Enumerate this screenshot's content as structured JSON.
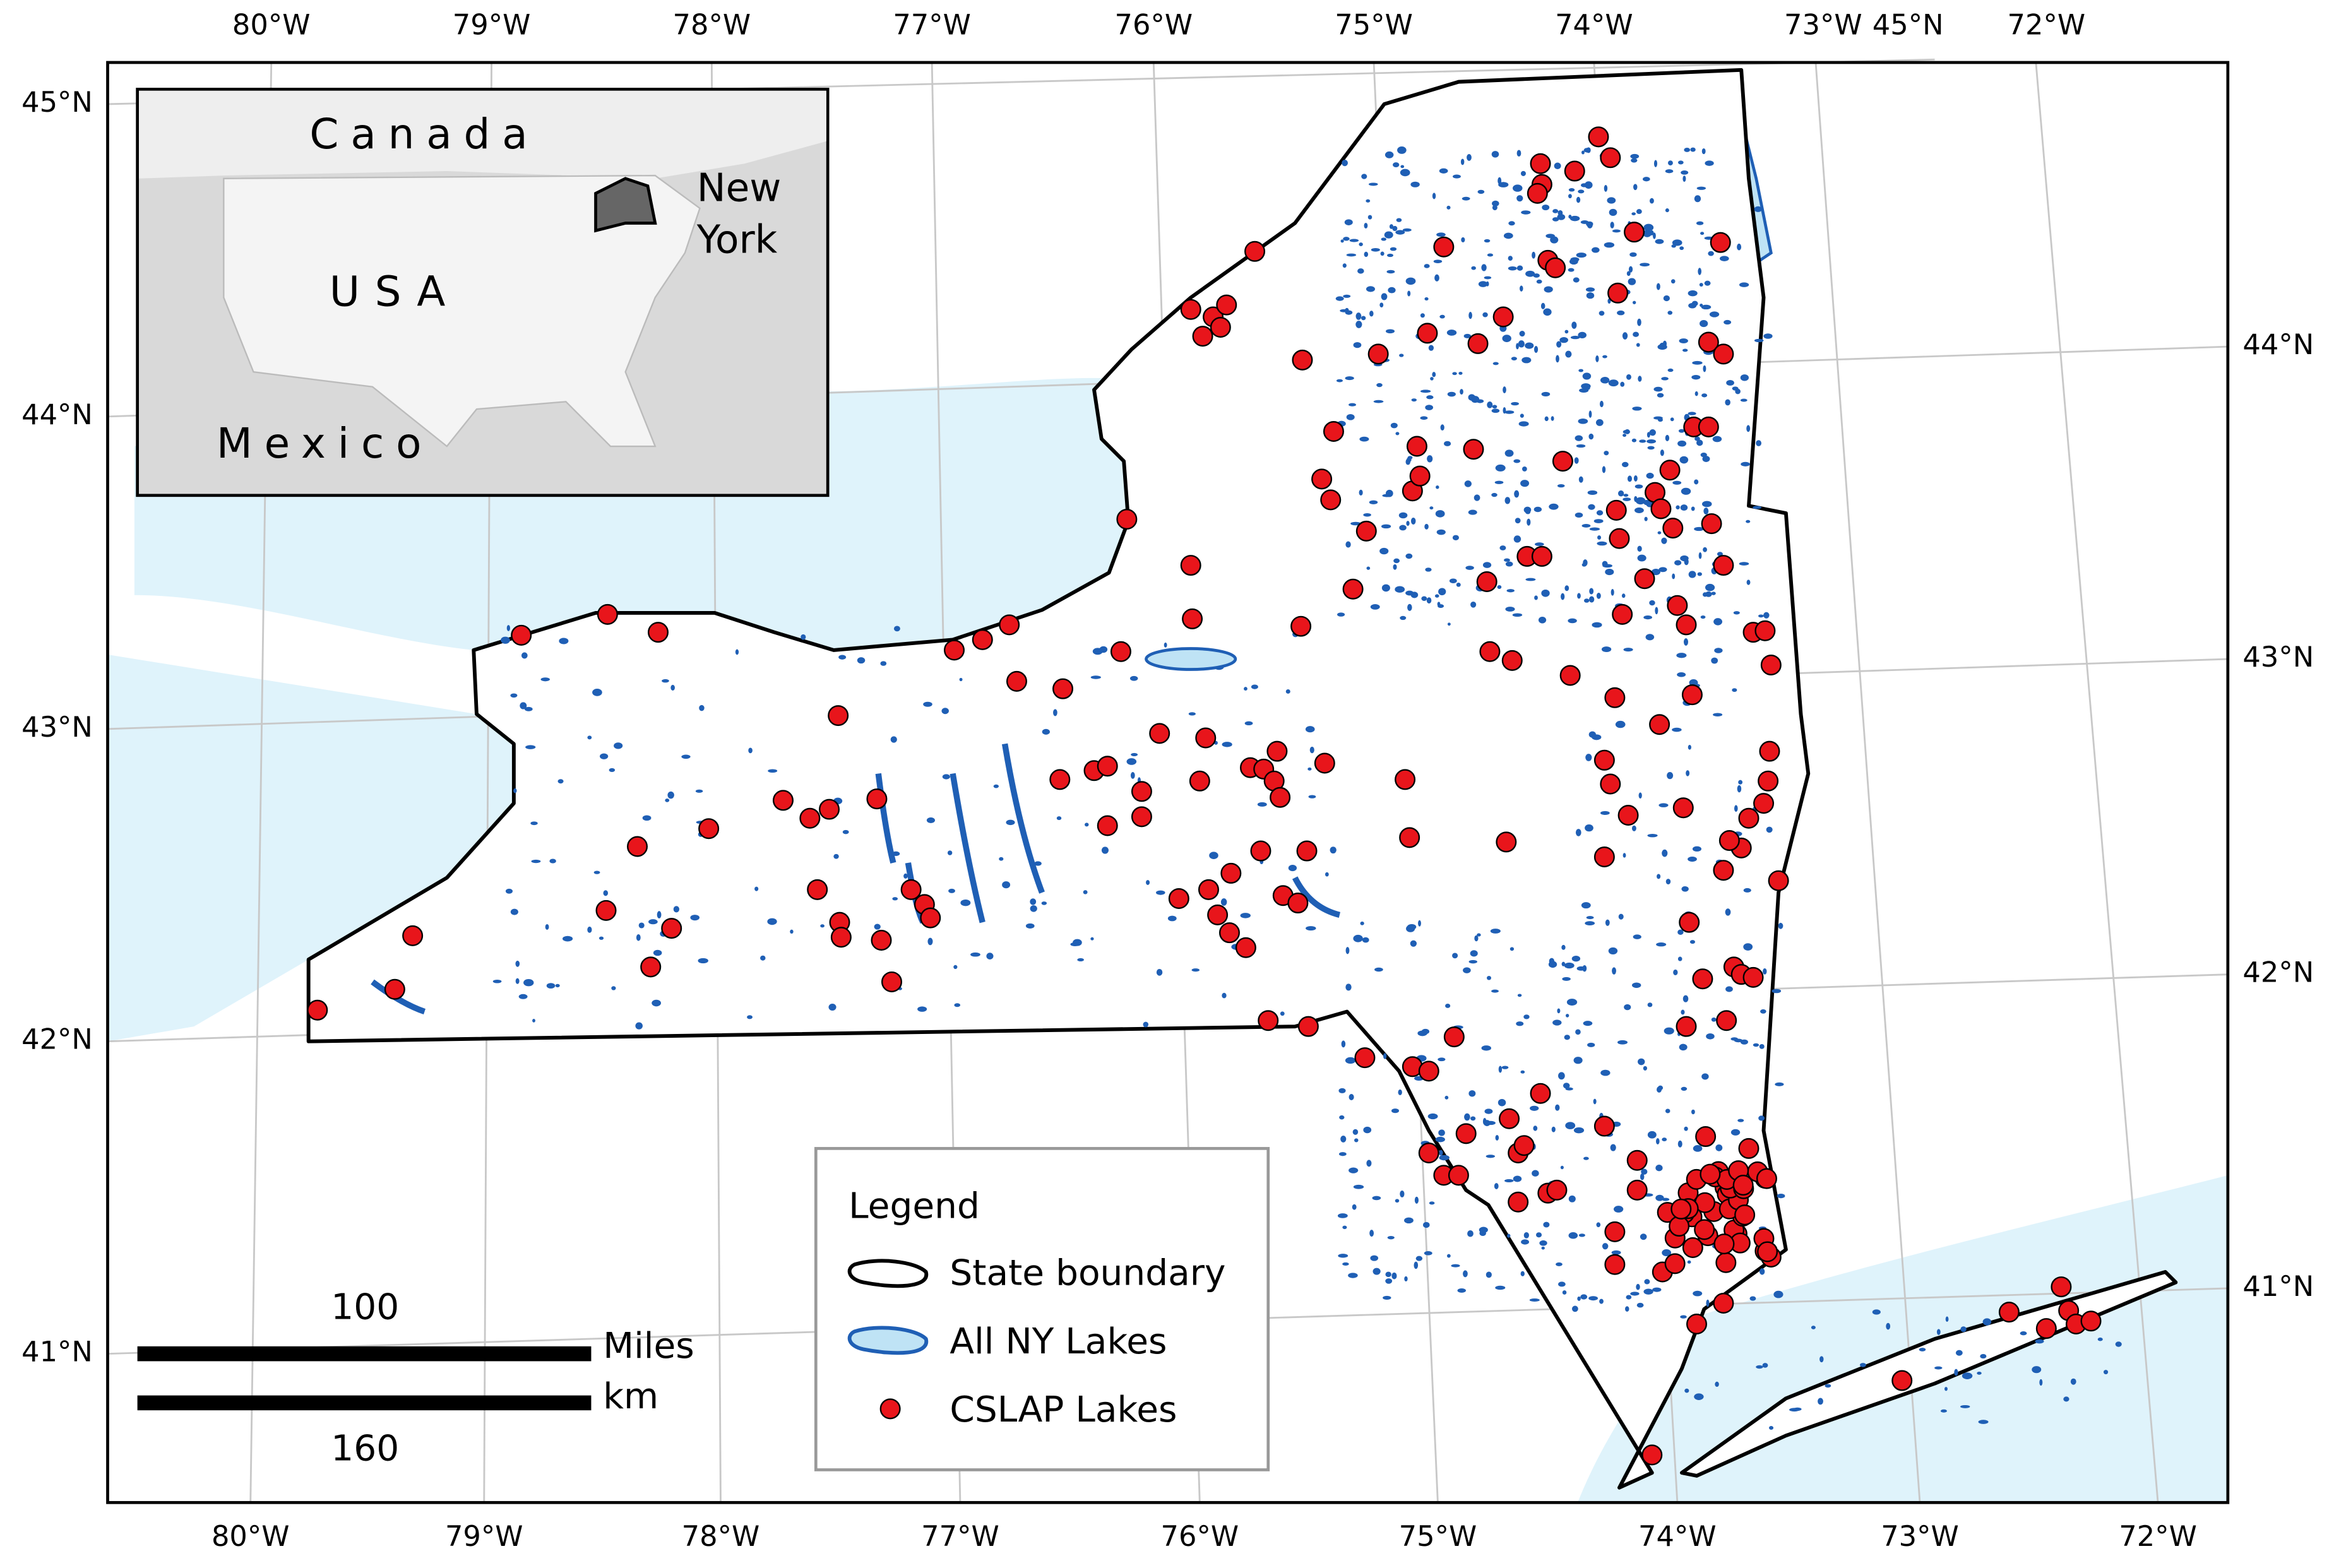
{
  "map": {
    "top_labels": [
      "80°W",
      "79°W",
      "78°W",
      "77°W",
      "76°W",
      "75°W",
      "74°W",
      "73°W",
      "45°N",
      "72°W"
    ],
    "bottom_labels": [
      "80°W",
      "79°W",
      "78°W",
      "77°W",
      "76°W",
      "75°W",
      "74°W",
      "73°W",
      "72°W"
    ],
    "left_labels": [
      "45°N",
      "44°N",
      "43°N",
      "42°N",
      "41°N"
    ],
    "right_labels": [
      "44°N",
      "43°N",
      "42°N",
      "41°N"
    ]
  },
  "inset": {
    "canada": "Canada",
    "usa": "USA",
    "mexico": "Mexico",
    "state_line1": "New",
    "state_line2": "York"
  },
  "legend": {
    "title": "Legend",
    "items": [
      "State boundary",
      "All NY Lakes",
      "CSLAP Lakes"
    ]
  },
  "scale_bar": {
    "miles_value": 100,
    "miles_unit": "Miles",
    "km_unit": "km",
    "km_value": 160
  }
}
